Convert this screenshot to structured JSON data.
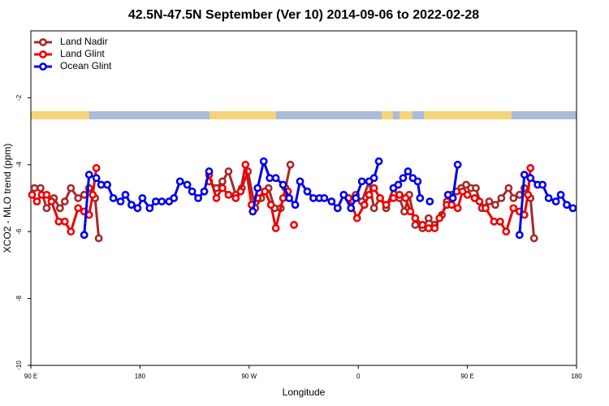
{
  "chart_data": {
    "type": "line",
    "title": "42.5N-47.5N September (Ver 10)   2014-09-06 to 2022-02-28",
    "x_label": "Longitude",
    "y_label": "XCO2 - MLO trend (ppm)",
    "xlim": [
      90,
      540
    ],
    "ylim": [
      -10,
      0
    ],
    "xticks": [
      {
        "value": 90,
        "label": "90 E"
      },
      {
        "value": 180,
        "label": "180"
      },
      {
        "value": 270,
        "label": "90 W"
      },
      {
        "value": 360,
        "label": "0"
      },
      {
        "value": 450,
        "label": "90 E"
      },
      {
        "value": 540,
        "label": "180"
      }
    ],
    "yticks": [
      -10,
      -8,
      -6,
      -4,
      -2
    ],
    "legend": "top-left",
    "series": [
      {
        "name": "Land Nadir",
        "color": "#a52a2a",
        "x": [
          93,
          98,
          103,
          109,
          114,
          118,
          123,
          129,
          134,
          138,
          143,
          146,
          null,
          237,
          243,
          248,
          253,
          259,
          264,
          269,
          275,
          280,
          286,
          291,
          296,
          300,
          304,
          null,
          352,
          358,
          363,
          369,
          373,
          378,
          383,
          389,
          394,
          398,
          402,
          407,
          413,
          418,
          423,
          429,
          433,
          437,
          441,
          445,
          449,
          453,
          457,
          462,
          468,
          473,
          478,
          484,
          488,
          493,
          497,
          502,
          505
        ],
        "values": [
          -4.7,
          -4.7,
          -5.3,
          -5.0,
          -5.3,
          -5.1,
          -4.7,
          -5.0,
          -4.9,
          -4.7,
          -5.0,
          -6.2,
          null,
          -4.5,
          -4.7,
          -4.5,
          -4.2,
          -4.9,
          -4.7,
          -4.2,
          -5.3,
          -5.0,
          -4.7,
          -5.3,
          -5.3,
          -4.7,
          -4.0,
          null,
          -5.0,
          -4.9,
          -5.1,
          -4.5,
          -5.3,
          -5.0,
          -5.3,
          -4.7,
          -5.0,
          -5.4,
          -4.9,
          -5.8,
          -5.9,
          -5.6,
          -5.8,
          -5.5,
          -5.1,
          -4.9,
          -4.8,
          -4.7,
          -4.6,
          -4.7,
          -4.7,
          -5.3,
          -5.1,
          -5.2,
          -5.0,
          -4.7,
          -5.0,
          -4.9,
          -4.7,
          -5.0,
          -6.2
        ]
      },
      {
        "name": "Land Glint",
        "color": "#ee0000",
        "x": [
          91,
          95,
          99,
          103,
          107,
          113,
          118,
          123,
          129,
          134,
          138,
          141,
          144,
          null,
          237,
          243,
          248,
          253,
          259,
          263,
          267,
          272,
          277,
          283,
          288,
          292,
          298,
          302,
          null,
          307,
          null,
          352,
          359,
          365,
          369,
          373,
          378,
          383,
          389,
          394,
          399,
          403,
          407,
          413,
          418,
          423,
          427,
          433,
          437,
          442,
          446,
          450,
          456,
          460,
          465,
          472,
          477,
          482,
          488,
          493,
          497,
          500,
          502
        ],
        "values": [
          -4.9,
          -5.1,
          -4.9,
          -4.9,
          -5.1,
          -5.7,
          -5.7,
          -6.0,
          -5.3,
          -5.4,
          -5.5,
          -4.9,
          -4.1,
          null,
          -4.3,
          -5.0,
          -4.7,
          -4.9,
          -5.0,
          -4.8,
          -4.0,
          -5.2,
          -5.0,
          -4.8,
          -5.2,
          -5.9,
          -5.0,
          -4.8,
          null,
          -5.8,
          null,
          -5.0,
          -5.6,
          -5.2,
          -4.9,
          -4.7,
          -5.0,
          -5.2,
          -5.0,
          -4.9,
          -5.0,
          -5.4,
          -5.6,
          -5.8,
          -5.9,
          -5.9,
          -5.6,
          -5.2,
          -5.2,
          -5.3,
          -4.8,
          -4.9,
          -5.0,
          -5.1,
          -5.3,
          -5.7,
          -5.7,
          -6.0,
          -5.3,
          -5.4,
          -5.5,
          -4.9,
          -4.1
        ]
      },
      {
        "name": "Ocean Glint",
        "color": "#0000ee",
        "x": [
          134,
          138,
          144,
          148,
          153,
          158,
          164,
          168,
          173,
          178,
          182,
          188,
          193,
          198,
          204,
          208,
          213,
          219,
          223,
          228,
          233,
          237,
          null,
          273,
          277,
          282,
          287,
          292,
          298,
          303,
          308,
          312,
          318,
          323,
          328,
          332,
          338,
          343,
          348,
          354,
          358,
          363,
          369,
          373,
          377,
          null,
          389,
          393,
          397,
          401,
          405,
          409,
          411,
          null,
          419,
          null,
          434,
          438,
          442,
          null,
          493,
          497,
          502,
          508,
          512,
          517,
          523,
          527,
          532,
          537
        ],
        "values": [
          -6.1,
          -4.3,
          -4.4,
          -4.6,
          -4.6,
          -5.0,
          -5.1,
          -4.9,
          -5.2,
          -5.3,
          -5.0,
          -5.3,
          -5.1,
          -5.1,
          -5.1,
          -5.0,
          -4.5,
          -4.6,
          -4.8,
          -5.0,
          -4.8,
          -4.2,
          null,
          -5.4,
          -4.7,
          -3.9,
          -4.4,
          -4.4,
          -4.6,
          -5.0,
          -5.2,
          -4.5,
          -4.8,
          -5.0,
          -5.0,
          -5.0,
          -5.1,
          -5.3,
          -4.9,
          -5.3,
          -5.0,
          -4.5,
          -4.5,
          -4.4,
          -3.9,
          null,
          -4.7,
          -4.6,
          -4.4,
          -4.2,
          -4.4,
          -4.5,
          -5.0,
          null,
          -5.1,
          null,
          -4.9,
          -5.0,
          -4.0,
          null,
          -6.1,
          -4.3,
          -4.4,
          -4.6,
          -4.6,
          -5.0,
          -5.1,
          -4.9,
          -5.2,
          -5.3
        ]
      }
    ]
  }
}
